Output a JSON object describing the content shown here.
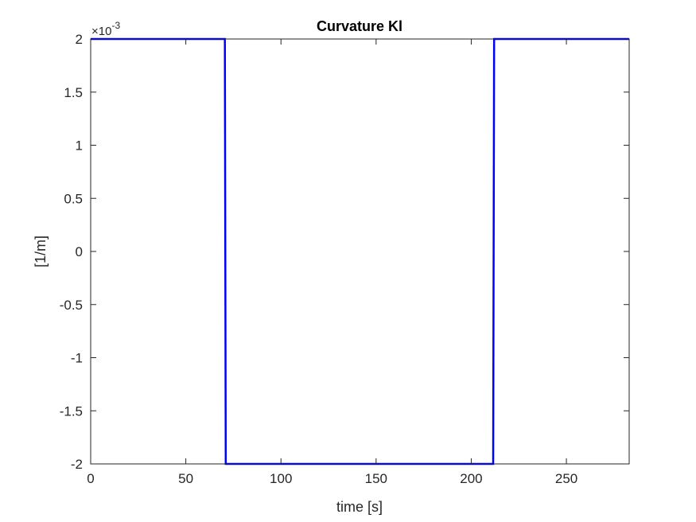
{
  "chart_data": {
    "type": "line",
    "title": "Curvature Kl",
    "xlabel": "time [s]",
    "ylabel": "[1/m]",
    "y_multiplier": "×10",
    "y_exponent": "-3",
    "xlim": [
      0,
      283
    ],
    "ylim": [
      -2,
      2
    ],
    "x_ticks": [
      0,
      50,
      100,
      150,
      200,
      250
    ],
    "x_tick_labels": [
      "0",
      "50",
      "100",
      "150",
      "200",
      "250"
    ],
    "y_ticks": [
      -2,
      -1.5,
      -1,
      -0.5,
      0,
      0.5,
      1,
      1.5,
      2
    ],
    "y_tick_labels": [
      "-2",
      "-1.5",
      "-1",
      "-0.5",
      "0",
      "0.5",
      "1",
      "1.5",
      "2"
    ],
    "grid": false,
    "series": [
      {
        "color": "#0000ff",
        "x": [
          0,
          70.5,
          71,
          211.5,
          212,
          283
        ],
        "y": [
          2,
          2,
          -2,
          -2,
          2,
          2
        ]
      }
    ]
  }
}
